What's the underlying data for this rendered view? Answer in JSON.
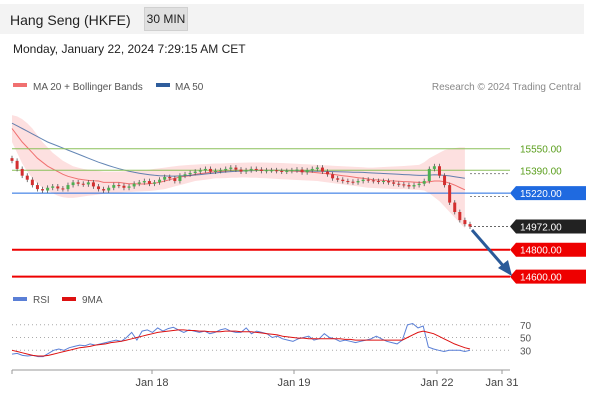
{
  "header": {
    "title": "Hang Seng (HKFE)",
    "timeframe_label": "30 MIN",
    "datetime": "Monday, January 22, 2024 7:29:15 AM CET"
  },
  "legend": {
    "ma20_label": "MA 20 + Bollinger Bands",
    "ma50_label": "MA 50",
    "ma20_color": "#f07070",
    "ma50_color": "#2f5d9c",
    "credit": "Research © 2024 Trading Central"
  },
  "rsi_legend": {
    "rsi_label": "RSI",
    "ma_label": "9MA",
    "rsi_color": "#5a7fd6",
    "ma_color": "#dd1111"
  },
  "colors": {
    "bollinger_fill": "#fde0e0",
    "resistance_green": "#8cc05a",
    "support_red": "#ee0000",
    "pivot_blue": "#1f6ae0",
    "current_price_bg": "#222222",
    "arrow": "#2a5a99",
    "label_green_text": "#5a9e1c"
  },
  "chart_data": [
    {
      "type": "candlestick",
      "title": "",
      "x_ticks": [
        "Jan 18",
        "Jan 19",
        "Jan 22",
        "Jan 31"
      ],
      "ylim": [
        14560,
        15860
      ],
      "levels": [
        {
          "value": 15550,
          "label": "15550.00",
          "style": "resistance"
        },
        {
          "value": 15390,
          "label": "15390.00",
          "style": "resistance"
        },
        {
          "value": 15220,
          "label": "15220.00",
          "style": "pivot"
        },
        {
          "value": 14972,
          "label": "14972.00",
          "style": "current"
        },
        {
          "value": 14800,
          "label": "14800.00",
          "style": "support"
        },
        {
          "value": 14600,
          "label": "14600.00",
          "style": "support"
        }
      ],
      "close": [
        15460,
        15400,
        15350,
        15320,
        15280,
        15250,
        15240,
        15260,
        15270,
        15255,
        15250,
        15280,
        15300,
        15290,
        15285,
        15300,
        15270,
        15250,
        15240,
        15260,
        15280,
        15275,
        15260,
        15270,
        15290,
        15300,
        15310,
        15290,
        15300,
        15320,
        15340,
        15330,
        15310,
        15350,
        15360,
        15370,
        15380,
        15390,
        15400,
        15380,
        15385,
        15390,
        15400,
        15410,
        15395,
        15380,
        15390,
        15400,
        15395,
        15385,
        15390,
        15390,
        15385,
        15380,
        15385,
        15390,
        15395,
        15375,
        15390,
        15400,
        15410,
        15380,
        15360,
        15330,
        15320,
        15310,
        15305,
        15300,
        15310,
        15320,
        15315,
        15310,
        15305,
        15310,
        15300,
        15290,
        15285,
        15280,
        15270,
        15280,
        15290,
        15310,
        15400,
        15420,
        15350,
        15280,
        15150,
        15080,
        15020,
        14990,
        14972
      ],
      "ma20": [
        15700,
        15650,
        15600,
        15560,
        15520,
        15480,
        15450,
        15420,
        15400,
        15380,
        15360,
        15345,
        15335,
        15325,
        15320,
        15315,
        15312,
        15310,
        15300,
        15300,
        15300,
        15300,
        15295,
        15290,
        15290,
        15288,
        15288,
        15290,
        15295,
        15300,
        15310,
        15320,
        15330,
        15340,
        15345,
        15350,
        15360,
        15365,
        15370,
        15375,
        15380,
        15380,
        15385,
        15388,
        15388,
        15388,
        15389,
        15390,
        15390,
        15390,
        15390,
        15390,
        15389,
        15388,
        15386,
        15384,
        15382,
        15380,
        15378,
        15376,
        15372,
        15368,
        15365,
        15360,
        15355,
        15350,
        15345,
        15340,
        15335,
        15330,
        15325,
        15320,
        15318,
        15315,
        15312,
        15310,
        15308,
        15306,
        15304,
        15302,
        15300,
        15300,
        15305,
        15310,
        15310,
        15305,
        15295,
        15280,
        15262,
        15245
      ],
      "bb_upper": [
        15800,
        15790,
        15770,
        15740,
        15700,
        15650,
        15600,
        15560,
        15520,
        15490,
        15460,
        15440,
        15420,
        15410,
        15400,
        15395,
        15390,
        15385,
        15380,
        15380,
        15380,
        15380,
        15382,
        15384,
        15386,
        15388,
        15390,
        15395,
        15400,
        15405,
        15410,
        15415,
        15420,
        15425,
        15428,
        15430,
        15432,
        15434,
        15436,
        15438,
        15440,
        15440,
        15442,
        15444,
        15445,
        15446,
        15447,
        15448,
        15448,
        15448,
        15447,
        15446,
        15445,
        15444,
        15442,
        15440,
        15438,
        15436,
        15434,
        15432,
        15430,
        15428,
        15426,
        15424,
        15422,
        15420,
        15418,
        15416,
        15414,
        15412,
        15410,
        15410,
        15412,
        15414,
        15416,
        15418,
        15420,
        15422,
        15425,
        15428,
        15430,
        15450,
        15480,
        15500,
        15520,
        15540,
        15550,
        15555,
        15560,
        15560
      ],
      "bb_lower": [
        15600,
        15520,
        15440,
        15380,
        15330,
        15290,
        15260,
        15240,
        15220,
        15200,
        15190,
        15185,
        15185,
        15190,
        15195,
        15200,
        15205,
        15210,
        15215,
        15220,
        15222,
        15224,
        15226,
        15228,
        15230,
        15232,
        15234,
        15236,
        15240,
        15245,
        15250,
        15260,
        15270,
        15280,
        15290,
        15300,
        15310,
        15315,
        15320,
        15325,
        15330,
        15330,
        15332,
        15334,
        15335,
        15336,
        15336,
        15335,
        15334,
        15332,
        15330,
        15328,
        15326,
        15324,
        15322,
        15320,
        15318,
        15316,
        15314,
        15312,
        15310,
        15305,
        15300,
        15295,
        15290,
        15285,
        15280,
        15275,
        15270,
        15265,
        15260,
        15258,
        15256,
        15254,
        15252,
        15250,
        15250,
        15250,
        15248,
        15246,
        15244,
        15240,
        15220,
        15190,
        15160,
        15120,
        15080,
        15040,
        15000,
        14960
      ],
      "ma50": [
        15740,
        15720,
        15700,
        15680,
        15660,
        15640,
        15620,
        15600,
        15585,
        15570,
        15555,
        15540,
        15525,
        15510,
        15495,
        15480,
        15465,
        15450,
        15437,
        15425,
        15413,
        15402,
        15392,
        15383,
        15375,
        15368,
        15362,
        15357,
        15353,
        15350,
        15348,
        15347,
        15347,
        15348,
        15350,
        15352,
        15355,
        15358,
        15362,
        15366,
        15370,
        15374,
        15377,
        15380,
        15382,
        15384,
        15386,
        15387,
        15388,
        15389,
        15389,
        15389,
        15389,
        15389,
        15388,
        15388,
        15387,
        15386,
        15385,
        15384,
        15383,
        15382,
        15381,
        15380,
        15379,
        15378,
        15377,
        15376,
        15375,
        15374,
        15372,
        15370,
        15368,
        15366,
        15364,
        15362,
        15360,
        15358,
        15356,
        15354,
        15352,
        15352,
        15354,
        15356,
        15355,
        15352,
        15348,
        15342,
        15336,
        15330
      ]
    },
    {
      "type": "line",
      "title": "",
      "ylim": [
        10,
        90
      ],
      "y_ticks": [
        70,
        50,
        30
      ],
      "series": [
        {
          "name": "RSI",
          "values": [
            24,
            25,
            22,
            21,
            22,
            20,
            20,
            25,
            30,
            32,
            30,
            34,
            36,
            38,
            37,
            40,
            38,
            40,
            42,
            44,
            46,
            44,
            50,
            58,
            46,
            60,
            62,
            58,
            65,
            60,
            64,
            66,
            62,
            58,
            62,
            60,
            58,
            60,
            56,
            58,
            62,
            64,
            60,
            58,
            58,
            65,
            56,
            60,
            58,
            56,
            50,
            52,
            48,
            46,
            44,
            48,
            50,
            52,
            46,
            48,
            56,
            50,
            48,
            44,
            46,
            44,
            42,
            44,
            46,
            48,
            52,
            48,
            44,
            42,
            40,
            46,
            70,
            72,
            65,
            68,
            35,
            32,
            30,
            28,
            30,
            30,
            30,
            28,
            30
          ]
        },
        {
          "name": "9MA",
          "values": [
            30,
            28,
            26,
            24,
            22,
            21,
            21,
            22,
            24,
            26,
            28,
            30,
            32,
            34,
            35,
            36,
            38,
            39,
            40,
            42,
            43,
            44,
            46,
            48,
            50,
            52,
            54,
            56,
            58,
            59,
            60,
            61,
            62,
            62,
            61,
            61,
            60,
            60,
            59,
            59,
            59,
            60,
            60,
            60,
            59,
            59,
            59,
            58,
            57,
            56,
            55,
            54,
            52,
            51,
            50,
            49,
            49,
            48,
            48,
            48,
            48,
            48,
            48,
            48,
            47,
            47,
            46,
            46,
            46,
            46,
            46,
            46,
            46,
            46,
            46,
            46,
            50,
            54,
            58,
            60,
            58,
            56,
            52,
            48,
            44,
            40,
            37,
            34,
            32
          ]
        }
      ]
    }
  ]
}
